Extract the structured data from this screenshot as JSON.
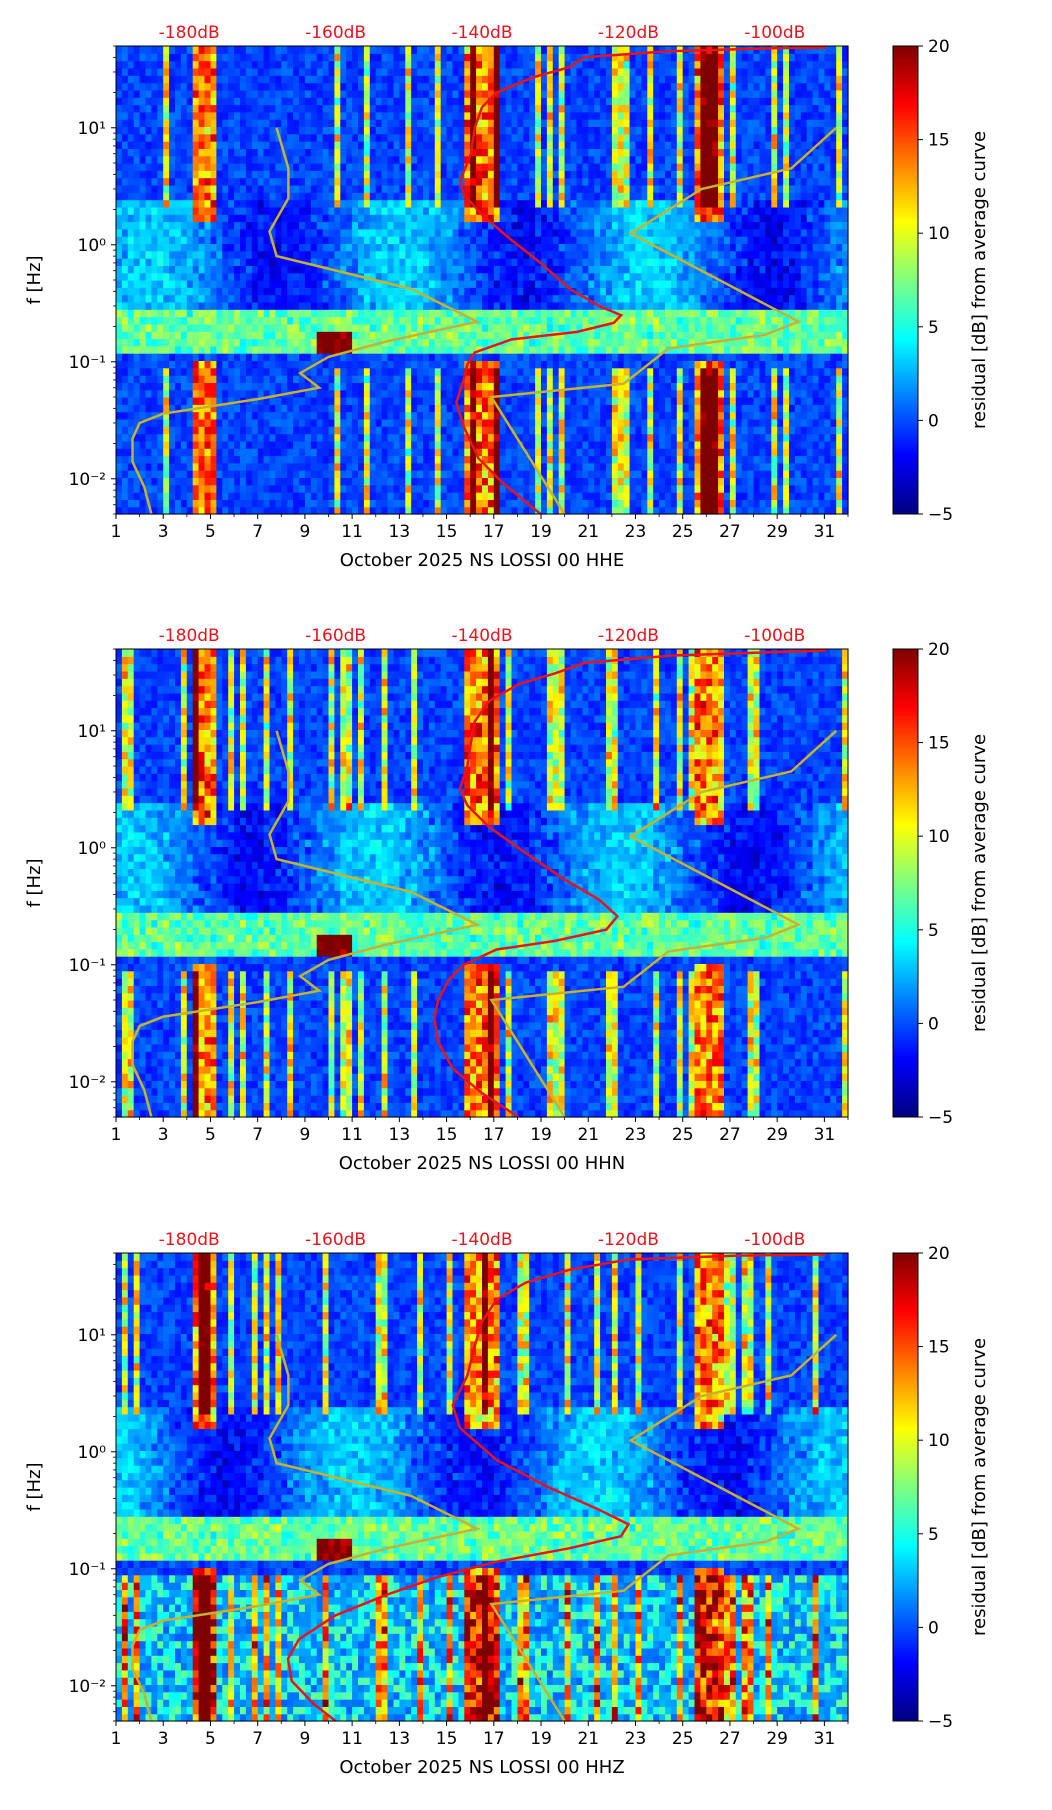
{
  "panels": [
    {
      "id": "hhe",
      "component_code": "HHE",
      "xlabel": "October 2025 NS LOSSI 00 HHE",
      "ylabel": "f [Hz]",
      "colorbar_label": "residual [dB] from average curve"
    },
    {
      "id": "hhn",
      "component_code": "HHN",
      "xlabel": "October 2025 NS LOSSI 00 HHN",
      "ylabel": "f [Hz]",
      "colorbar_label": "residual [dB] from average curve"
    },
    {
      "id": "hhz",
      "component_code": "HHZ",
      "xlabel": "October 2025 NS LOSSI 00 HHZ",
      "ylabel": "f [Hz]",
      "colorbar_label": "residual [dB] from average curve"
    }
  ],
  "colors": {
    "heat_scale": [
      "#00007f",
      "#0000ff",
      "#007fff",
      "#00ffff",
      "#7fff7f",
      "#ffff00",
      "#ff7f00",
      "#ff0000",
      "#7f0000"
    ],
    "background": "#0a1a9a",
    "psd_curve": "#e8141c",
    "noise_model": "#c8b030",
    "top_axis_text": "#e8141c"
  },
  "chart_data": {
    "type": "heatmap",
    "title": "",
    "x_axis": {
      "label_template": "October 2025 NS LOSSI 00 {component}",
      "range": [
        1,
        32
      ],
      "ticks": [
        1,
        3,
        5,
        7,
        9,
        11,
        13,
        15,
        17,
        19,
        21,
        23,
        25,
        27,
        29,
        31
      ],
      "tick_labels": [
        "1",
        "3",
        "5",
        "7",
        "9",
        "11",
        "13",
        "15",
        "17",
        "19",
        "21",
        "23",
        "25",
        "27",
        "29",
        "31"
      ]
    },
    "y_axis": {
      "label": "f [Hz]",
      "scale": "log",
      "range": [
        0.005,
        50
      ],
      "ticks": [
        0.01,
        0.1,
        1,
        10
      ],
      "tick_labels": [
        "10⁻²",
        "10⁻¹",
        "10⁰",
        "10¹"
      ]
    },
    "top_axis": {
      "unit": "dB",
      "range": [
        -190,
        -90
      ],
      "ticks": [
        -180,
        -160,
        -140,
        -120,
        -100
      ],
      "tick_labels": [
        "-180dB",
        "-160dB",
        "-140dB",
        "-120dB",
        "-100dB"
      ]
    },
    "colorbar": {
      "label": "residual [dB] from average curve",
      "range": [
        -5,
        20
      ],
      "ticks": [
        -5,
        0,
        5,
        10,
        15,
        20
      ],
      "tick_labels": [
        "−5",
        "0",
        "5",
        "10",
        "15",
        "20"
      ]
    },
    "noise_model_curve": {
      "name": "noise model bounds",
      "points_day_freq": [
        [
          2.5,
          0.005
        ],
        [
          2.2,
          0.0085
        ],
        [
          1.7,
          0.014
        ],
        [
          1.7,
          0.022
        ],
        [
          2.0,
          0.03
        ],
        [
          3.0,
          0.036
        ],
        [
          7.0,
          0.048
        ],
        [
          9.6,
          0.06
        ],
        [
          8.8,
          0.08
        ],
        [
          10.0,
          0.11
        ],
        [
          12.5,
          0.15
        ],
        [
          16.3,
          0.22
        ],
        [
          13.5,
          0.42
        ],
        [
          7.8,
          0.8
        ],
        [
          7.5,
          1.3
        ],
        [
          8.3,
          2.5
        ],
        [
          8.3,
          4.5
        ],
        [
          7.8,
          10
        ],
        null,
        [
          20.0,
          0.005
        ],
        [
          16.9,
          0.05
        ],
        [
          22.5,
          0.065
        ],
        [
          24.4,
          0.13
        ],
        [
          28.5,
          0.17
        ],
        [
          29.9,
          0.22
        ],
        [
          22.8,
          1.25
        ],
        [
          25.8,
          3.0
        ],
        [
          29.6,
          4.5
        ],
        [
          31.5,
          10
        ]
      ]
    },
    "series": [
      {
        "panel": "HHE",
        "name": "average PSD curve",
        "points_db_freq": [
          [
            -132,
            0.005
          ],
          [
            -137,
            0.009
          ],
          [
            -140.5,
            0.015
          ],
          [
            -142.5,
            0.028
          ],
          [
            -143.5,
            0.045
          ],
          [
            -142.5,
            0.07
          ],
          [
            -142,
            0.095
          ],
          [
            -141,
            0.12
          ],
          [
            -136,
            0.155
          ],
          [
            -127,
            0.18
          ],
          [
            -122,
            0.215
          ],
          [
            -121,
            0.25
          ],
          [
            -124,
            0.3
          ],
          [
            -128,
            0.42
          ],
          [
            -132,
            0.7
          ],
          [
            -136,
            1.1
          ],
          [
            -140,
            1.8
          ],
          [
            -142.5,
            2.7
          ],
          [
            -143,
            3.5
          ],
          [
            -141.5,
            6
          ],
          [
            -141,
            10
          ],
          [
            -140,
            15
          ],
          [
            -138,
            20
          ],
          [
            -133,
            27
          ],
          [
            -128,
            33
          ],
          [
            -126,
            40
          ],
          [
            -115,
            45
          ],
          [
            -100,
            48
          ],
          [
            -93,
            48.5
          ]
        ]
      },
      {
        "panel": "HHN",
        "name": "average PSD curve",
        "points_db_freq": [
          [
            -135,
            0.005
          ],
          [
            -140,
            0.008
          ],
          [
            -144,
            0.013
          ],
          [
            -146,
            0.022
          ],
          [
            -146.5,
            0.035
          ],
          [
            -146,
            0.05
          ],
          [
            -144.5,
            0.075
          ],
          [
            -142.5,
            0.1
          ],
          [
            -138,
            0.135
          ],
          [
            -130,
            0.16
          ],
          [
            -123,
            0.2
          ],
          [
            -121.5,
            0.26
          ],
          [
            -124,
            0.36
          ],
          [
            -129,
            0.55
          ],
          [
            -134,
            0.9
          ],
          [
            -139,
            1.5
          ],
          [
            -142,
            2.3
          ],
          [
            -143,
            3.2
          ],
          [
            -142,
            5
          ],
          [
            -141.5,
            8
          ],
          [
            -141,
            12
          ],
          [
            -139,
            18
          ],
          [
            -135,
            25
          ],
          [
            -130,
            31
          ],
          [
            -126,
            38
          ],
          [
            -114,
            44
          ],
          [
            -100,
            47
          ],
          [
            -93,
            48.5
          ]
        ]
      },
      {
        "panel": "HHZ",
        "name": "average PSD curve",
        "points_db_freq": [
          [
            -160,
            0.005
          ],
          [
            -163,
            0.007
          ],
          [
            -166,
            0.011
          ],
          [
            -166.5,
            0.017
          ],
          [
            -165,
            0.025
          ],
          [
            -160,
            0.04
          ],
          [
            -153,
            0.06
          ],
          [
            -146,
            0.085
          ],
          [
            -138,
            0.115
          ],
          [
            -128,
            0.15
          ],
          [
            -121,
            0.19
          ],
          [
            -120,
            0.24
          ],
          [
            -124,
            0.32
          ],
          [
            -131,
            0.5
          ],
          [
            -138,
            0.85
          ],
          [
            -143,
            1.6
          ],
          [
            -144,
            2.5
          ],
          [
            -142,
            4.5
          ],
          [
            -141,
            8
          ],
          [
            -140,
            13
          ],
          [
            -138,
            20
          ],
          [
            -134,
            28
          ],
          [
            -128,
            36
          ],
          [
            -120,
            44
          ],
          [
            -105,
            47.5
          ],
          [
            -93,
            48.5
          ]
        ]
      }
    ],
    "annotations": [
      {
        "panel": "all",
        "text": "-180dB"
      },
      {
        "panel": "all",
        "text": "-160dB"
      },
      {
        "panel": "all",
        "text": "-140dB"
      },
      {
        "panel": "all",
        "text": "-120dB"
      },
      {
        "panel": "all",
        "text": "-100dB"
      }
    ],
    "intensity_features": {
      "bright_day_columns": [
        [
          4.3,
          5.3
        ],
        [
          15.8,
          17.2
        ],
        [
          25.5,
          26.7
        ]
      ],
      "microseism_band_hz": [
        0.12,
        0.28
      ],
      "hot_spot": {
        "day": 10.2,
        "freq_hz": 0.15
      }
    }
  }
}
